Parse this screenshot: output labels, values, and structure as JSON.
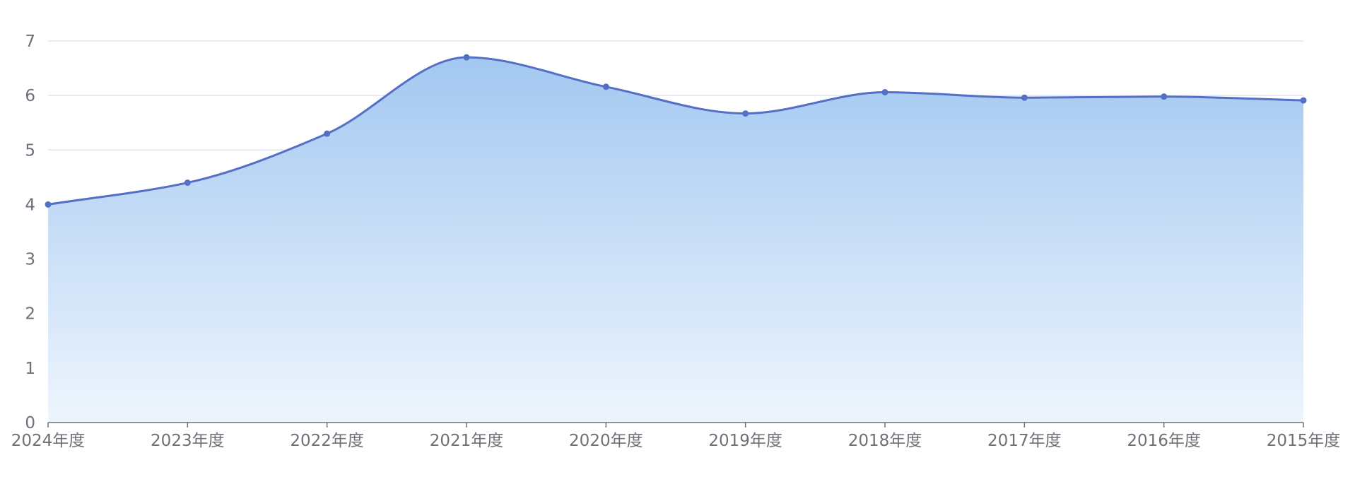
{
  "chart_data": {
    "type": "area",
    "title": "",
    "xlabel": "",
    "ylabel": "",
    "categories": [
      "2024年度",
      "2023年度",
      "2022年度",
      "2021年度",
      "2020年度",
      "2019年度",
      "2018年度",
      "2017年度",
      "2016年度",
      "2015年度"
    ],
    "series": [
      {
        "values": [
          4.0,
          4.4,
          5.3,
          6.7,
          6.16,
          5.67,
          6.06,
          5.96,
          5.98,
          5.91
        ]
      }
    ],
    "yticks": [
      "0",
      "1",
      "2",
      "3",
      "4",
      "5",
      "6",
      "7"
    ],
    "ylim": [
      0,
      7
    ],
    "grid": true,
    "smooth": true,
    "legend": "none",
    "colors": {
      "line": "#5470c6",
      "area_top": "#a3c8f1",
      "area_bottom": "#eef5fd",
      "grid": "#e0e6f1",
      "axis": "#6e7079",
      "text": "#6e7079"
    }
  }
}
